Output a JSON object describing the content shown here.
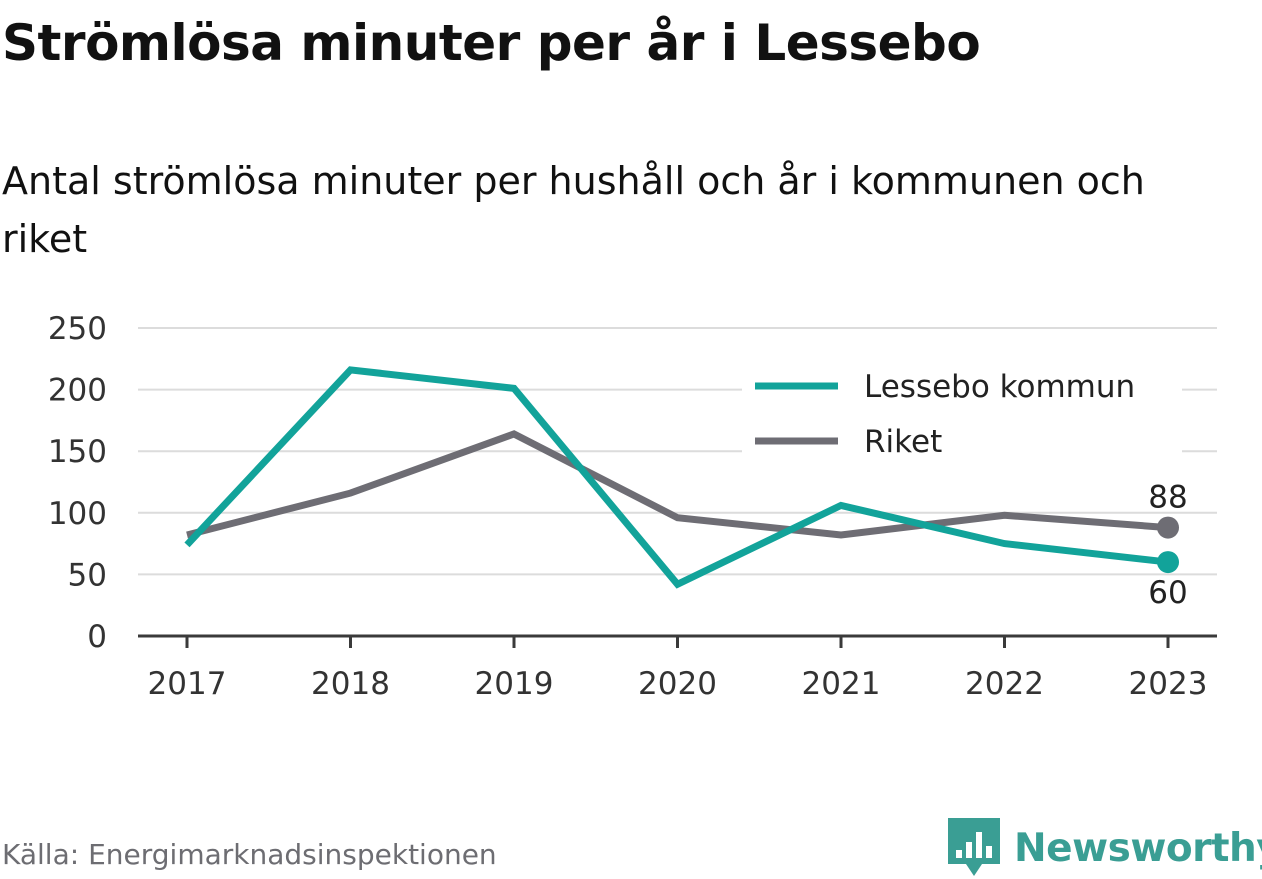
{
  "title": "Strömlösa minuter per år i Lessebo",
  "subtitle": "Antal strömlösa minuter per hushåll och år i kommunen och riket",
  "source": "Källa: Energimarknadsinspektionen",
  "brand": {
    "name": "Newsworthy",
    "color": "#3a9e94"
  },
  "chart_data": {
    "type": "line",
    "x": [
      2017,
      2018,
      2019,
      2020,
      2021,
      2022,
      2023
    ],
    "x_tick_labels": [
      "2017",
      "2018",
      "2019",
      "2020",
      "2021",
      "2022",
      "2023"
    ],
    "y_ticks": [
      0,
      50,
      100,
      150,
      200,
      250
    ],
    "ylim": [
      0,
      250
    ],
    "grid": true,
    "legend_position": "top-right",
    "series": [
      {
        "name": "Lessebo kommun",
        "color": "#12a39a",
        "values": [
          74,
          216,
          201,
          42,
          106,
          75,
          60
        ],
        "end_label": "60"
      },
      {
        "name": "Riket",
        "color": "#6e6d74",
        "values": [
          82,
          116,
          164,
          96,
          82,
          98,
          88
        ],
        "end_label": "88"
      }
    ]
  }
}
